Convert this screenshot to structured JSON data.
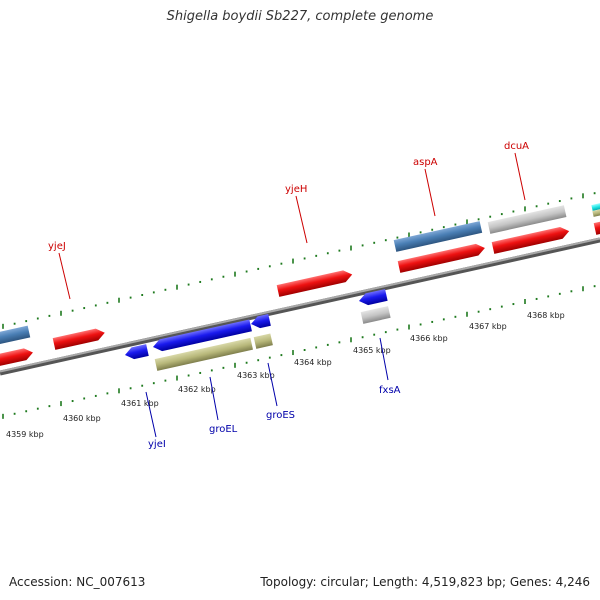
{
  "title": "Shigella boydii Sb227, complete genome",
  "footer": {
    "accession": "Accession: NC_007613",
    "stats": "Topology: circular; Length: 4,519,823 bp; Genes: 4,246"
  },
  "colors": {
    "backbone": "#8a8a8a",
    "tick": "#1e7a1e",
    "label_top": "#cc0000",
    "label_bottom": "#0000aa",
    "red": "#ee1111",
    "blue": "#1a1aee",
    "steel": "#4a7fb5",
    "olive": "#b7b77a",
    "gray": "#c4c4c4",
    "cyan": "#22e6e6"
  },
  "position_labels": [
    "4359 kbp",
    "4360 kbp",
    "4361 kbp",
    "4362 kbp",
    "4363 kbp",
    "4364 kbp",
    "4365 kbp",
    "4366 kbp",
    "4367 kbp",
    "4368 kbp"
  ],
  "gene_labels": {
    "top": [
      "yjeJ",
      "yjeH",
      "aspA",
      "dcuA"
    ],
    "bottom": [
      "yjeI",
      "groEL",
      "groES",
      "fxsA"
    ]
  }
}
